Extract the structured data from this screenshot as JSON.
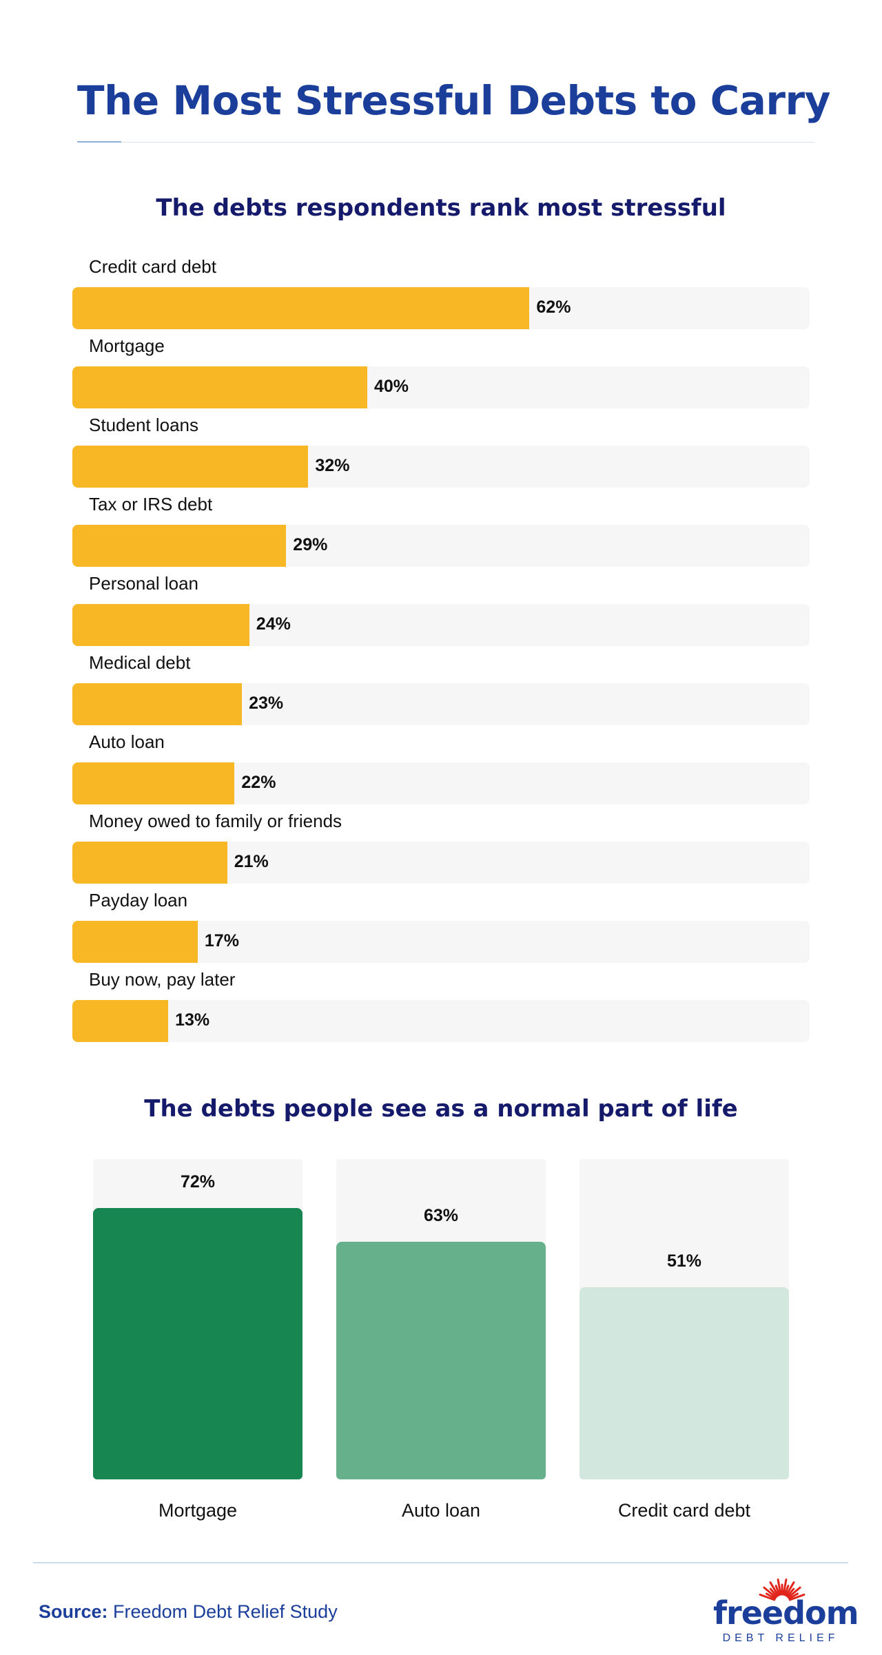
{
  "page": {
    "title": "The Most Stressful Debts to Carry"
  },
  "chart_data": [
    {
      "type": "bar",
      "orientation": "horizontal",
      "title": "The debts respondents rank most stressful",
      "unit": "%",
      "xlim": [
        0,
        100
      ],
      "grid": false,
      "categories": [
        "Credit card debt",
        "Mortgage",
        "Student loans",
        "Tax or IRS debt",
        "Personal loan",
        "Medical debt",
        "Auto loan",
        "Money owed to family or friends",
        "Payday loan",
        "Buy now, pay later"
      ],
      "values": [
        62,
        40,
        32,
        29,
        24,
        23,
        22,
        21,
        17,
        13
      ],
      "value_labels": [
        "62%",
        "40%",
        "32%",
        "29%",
        "24%",
        "23%",
        "22%",
        "21%",
        "17%",
        "13%"
      ],
      "colors": {
        "bar": "#f8b725",
        "track": "#f6f6f6"
      }
    },
    {
      "type": "bar",
      "orientation": "vertical",
      "title": "The debts people see as a normal part of life",
      "unit": "%",
      "ylim": [
        0,
        85
      ],
      "grid": false,
      "categories": [
        "Mortgage",
        "Auto loan",
        "Credit card debt"
      ],
      "values": [
        72,
        63,
        51
      ],
      "value_labels": [
        "72%",
        "63%",
        "51%"
      ],
      "colors": {
        "bars": [
          "#178651",
          "#66b08c",
          "#d2e8de"
        ],
        "track": "#f6f6f6"
      }
    }
  ],
  "footer": {
    "source_key": "Source:",
    "source_text": "Freedom Debt Relief Study",
    "logo_word": "freedom",
    "logo_sub": "DEBT RELIEF",
    "logo_colors": {
      "text": "#1a3e9a",
      "rays": "#e1251b"
    }
  }
}
